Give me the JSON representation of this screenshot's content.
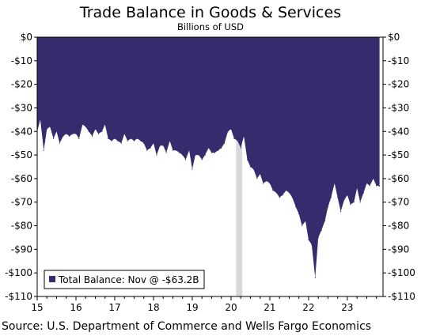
{
  "chart_data": {
    "type": "area",
    "title": "Trade Balance in Goods & Services",
    "subtitle": "Billions of USD",
    "source": "Source: U.S. Department of Commerce and Wells Fargo Economics",
    "legend": {
      "label": "Total Balance: Nov @ -$63.2B",
      "placement": "bottom-left"
    },
    "colors": {
      "area": "#342c6c",
      "recession": "#d9d9d9",
      "axis": "#000000"
    },
    "xlim": [
      2015.0,
      2023.92
    ],
    "ylim": [
      -110,
      0
    ],
    "yticks": [
      0,
      -10,
      -20,
      -30,
      -40,
      -50,
      -60,
      -70,
      -80,
      -90,
      -100,
      -110
    ],
    "ytick_labels": [
      "$0",
      "-$10",
      "-$20",
      "-$30",
      "-$40",
      "-$50",
      "-$60",
      "-$70",
      "-$80",
      "-$90",
      "-$100",
      "-$110"
    ],
    "xticks": [
      2015,
      2016,
      2017,
      2018,
      2019,
      2020,
      2021,
      2022,
      2023
    ],
    "xtick_labels": [
      "15",
      "16",
      "17",
      "18",
      "19",
      "20",
      "21",
      "22",
      "23"
    ],
    "recession": [
      2020.13,
      2020.29
    ],
    "series": [
      {
        "x": [
          2015.0,
          2015.08,
          2015.17,
          2015.25,
          2015.33,
          2015.42,
          2015.5,
          2015.58,
          2015.67,
          2015.75,
          2015.83,
          2015.92,
          2016.0,
          2016.08,
          2016.17,
          2016.25,
          2016.33,
          2016.42,
          2016.5,
          2016.58,
          2016.67,
          2016.75,
          2016.83,
          2016.92,
          2017.0,
          2017.08,
          2017.17,
          2017.25,
          2017.33,
          2017.42,
          2017.5,
          2017.58,
          2017.67,
          2017.75,
          2017.83,
          2017.92,
          2018.0,
          2018.08,
          2018.17,
          2018.25,
          2018.33,
          2018.42,
          2018.5,
          2018.58,
          2018.67,
          2018.75,
          2018.83,
          2018.92,
          2019.0,
          2019.08,
          2019.17,
          2019.25,
          2019.33,
          2019.42,
          2019.5,
          2019.58,
          2019.67,
          2019.75,
          2019.83,
          2019.92,
          2020.0,
          2020.08,
          2020.17,
          2020.25,
          2020.33,
          2020.42,
          2020.5,
          2020.58,
          2020.67,
          2020.75,
          2020.83,
          2020.92,
          2021.0,
          2021.08,
          2021.17,
          2021.25,
          2021.33,
          2021.42,
          2021.5,
          2021.58,
          2021.67,
          2021.75,
          2021.83,
          2021.92,
          2022.0,
          2022.08,
          2022.17,
          2022.25,
          2022.33,
          2022.42,
          2022.5,
          2022.58,
          2022.67,
          2022.75,
          2022.83,
          2022.92,
          2023.0,
          2023.08,
          2023.17,
          2023.25,
          2023.33,
          2023.42,
          2023.5,
          2023.58,
          2023.67,
          2023.75,
          2023.83
        ],
        "values": [
          -40,
          -35,
          -48,
          -39,
          -38,
          -43,
          -40,
          -45,
          -42,
          -41,
          -42,
          -41,
          -41,
          -43,
          -37,
          -38,
          -40,
          -42,
          -39,
          -41,
          -40,
          -37,
          -43,
          -44,
          -43,
          -44,
          -45,
          -41,
          -44,
          -43,
          -44,
          -43,
          -44,
          -45,
          -48,
          -47,
          -45,
          -50,
          -46,
          -46,
          -49,
          -44,
          -48,
          -48,
          -49,
          -50,
          -52,
          -48,
          -56,
          -50,
          -50,
          -52,
          -50,
          -47,
          -49,
          -49,
          -48,
          -47,
          -45,
          -40,
          -39,
          -43,
          -44,
          -47,
          -42,
          -52,
          -55,
          -56,
          -60,
          -58,
          -62,
          -61,
          -62,
          -65,
          -66,
          -68,
          -67,
          -65,
          -66,
          -68,
          -72,
          -75,
          -80,
          -78,
          -86,
          -88,
          -102,
          -85,
          -82,
          -78,
          -72,
          -68,
          -62,
          -68,
          -74,
          -69,
          -67,
          -71,
          -70,
          -64,
          -70,
          -66,
          -62,
          -63,
          -60,
          -63,
          -63.2
        ]
      }
    ]
  }
}
